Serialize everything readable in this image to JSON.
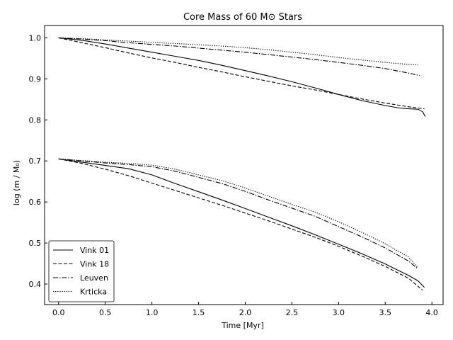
{
  "chart_data": {
    "type": "line",
    "title": "Core Mass of 60 M⊙ Stars",
    "xlabel": "Time [Myr]",
    "ylabel": "log (m / M₀)",
    "xlim": [
      -0.15,
      4.12
    ],
    "ylim": [
      0.35,
      1.03
    ],
    "xticks": [
      0.0,
      0.5,
      1.0,
      1.5,
      2.0,
      2.5,
      3.0,
      3.5,
      4.0
    ],
    "xtick_labels": [
      "0.0",
      "0.5",
      "1.0",
      "1.5",
      "2.0",
      "2.5",
      "3.0",
      "3.5",
      "4.0"
    ],
    "yticks": [
      0.4,
      0.5,
      0.6,
      0.7,
      0.8,
      0.9,
      1.0
    ],
    "ytick_labels": [
      "0.4",
      "0.5",
      "0.6",
      "0.7",
      "0.8",
      "0.9",
      "1.0"
    ],
    "grid": false,
    "legend_position": "bottom-left",
    "series": [
      {
        "name": "Vink 01",
        "style": "solid",
        "groups": [
          {
            "x": [
              0.0,
              0.25,
              0.5,
              0.75,
              1.0,
              1.25,
              1.5,
              1.75,
              2.0,
              2.25,
              2.5,
              2.75,
              3.0,
              3.25,
              3.5,
              3.65,
              3.75,
              3.85,
              3.9,
              3.93
            ],
            "y": [
              1.0,
              0.994,
              0.985,
              0.975,
              0.965,
              0.955,
              0.945,
              0.933,
              0.92,
              0.907,
              0.893,
              0.878,
              0.862,
              0.847,
              0.835,
              0.829,
              0.827,
              0.826,
              0.82,
              0.808
            ]
          },
          {
            "x": [
              0.0,
              0.25,
              0.5,
              0.75,
              1.0,
              1.25,
              1.5,
              1.75,
              2.0,
              2.25,
              2.5,
              2.75,
              3.0,
              3.25,
              3.5,
              3.75,
              3.85,
              3.92
            ],
            "y": [
              0.705,
              0.697,
              0.689,
              0.681,
              0.666,
              0.645,
              0.625,
              0.605,
              0.584,
              0.563,
              0.542,
              0.52,
              0.497,
              0.474,
              0.449,
              0.421,
              0.408,
              0.392
            ]
          }
        ]
      },
      {
        "name": "Vink 18",
        "style": "dashed",
        "groups": [
          {
            "x": [
              0.0,
              0.25,
              0.5,
              0.75,
              1.0,
              1.25,
              1.5,
              1.75,
              2.0,
              2.25,
              2.5,
              2.75,
              3.0,
              3.25,
              3.5,
              3.75,
              3.92
            ],
            "y": [
              1.0,
              0.988,
              0.976,
              0.963,
              0.951,
              0.94,
              0.928,
              0.917,
              0.905,
              0.894,
              0.883,
              0.873,
              0.862,
              0.851,
              0.841,
              0.832,
              0.827
            ]
          },
          {
            "x": [
              0.0,
              0.25,
              0.5,
              0.75,
              1.0,
              1.25,
              1.5,
              1.75,
              2.0,
              2.25,
              2.5,
              2.75,
              3.0,
              3.25,
              3.5,
              3.75,
              3.9
            ],
            "y": [
              0.705,
              0.694,
              0.68,
              0.664,
              0.646,
              0.628,
              0.61,
              0.592,
              0.573,
              0.554,
              0.534,
              0.514,
              0.492,
              0.468,
              0.443,
              0.414,
              0.385
            ]
          }
        ]
      },
      {
        "name": "Leuven",
        "style": "dashdot",
        "groups": [
          {
            "x": [
              0.0,
              0.25,
              0.5,
              0.75,
              1.0,
              1.25,
              1.5,
              1.75,
              2.0,
              2.25,
              2.5,
              2.75,
              3.0,
              3.25,
              3.5,
              3.75,
              3.87
            ],
            "y": [
              1.0,
              0.997,
              0.993,
              0.988,
              0.984,
              0.98,
              0.975,
              0.97,
              0.965,
              0.959,
              0.953,
              0.947,
              0.94,
              0.933,
              0.925,
              0.914,
              0.908
            ]
          },
          {
            "x": [
              0.0,
              0.25,
              0.5,
              0.75,
              1.0,
              1.25,
              1.5,
              1.75,
              2.0,
              2.25,
              2.5,
              2.75,
              3.0,
              3.25,
              3.5,
              3.75,
              3.85
            ],
            "y": [
              0.705,
              0.7,
              0.695,
              0.691,
              0.686,
              0.675,
              0.66,
              0.645,
              0.626,
              0.605,
              0.585,
              0.565,
              0.54,
              0.515,
              0.488,
              0.456,
              0.437
            ]
          }
        ]
      },
      {
        "name": "Krticka",
        "style": "dotted",
        "groups": [
          {
            "x": [
              0.0,
              0.25,
              0.5,
              0.75,
              1.0,
              1.25,
              1.5,
              1.75,
              2.0,
              2.25,
              2.5,
              2.75,
              3.0,
              3.25,
              3.5,
              3.75,
              3.85
            ],
            "y": [
              1.0,
              0.998,
              0.995,
              0.992,
              0.989,
              0.986,
              0.983,
              0.98,
              0.976,
              0.971,
              0.965,
              0.959,
              0.952,
              0.946,
              0.94,
              0.935,
              0.934
            ]
          },
          {
            "x": [
              0.0,
              0.25,
              0.5,
              0.75,
              1.0,
              1.25,
              1.5,
              1.75,
              2.0,
              2.25,
              2.5,
              2.75,
              3.0,
              3.25,
              3.5,
              3.75,
              3.85
            ],
            "y": [
              0.705,
              0.701,
              0.697,
              0.694,
              0.69,
              0.68,
              0.666,
              0.652,
              0.634,
              0.614,
              0.594,
              0.575,
              0.552,
              0.526,
              0.498,
              0.466,
              0.44
            ]
          }
        ]
      }
    ]
  }
}
